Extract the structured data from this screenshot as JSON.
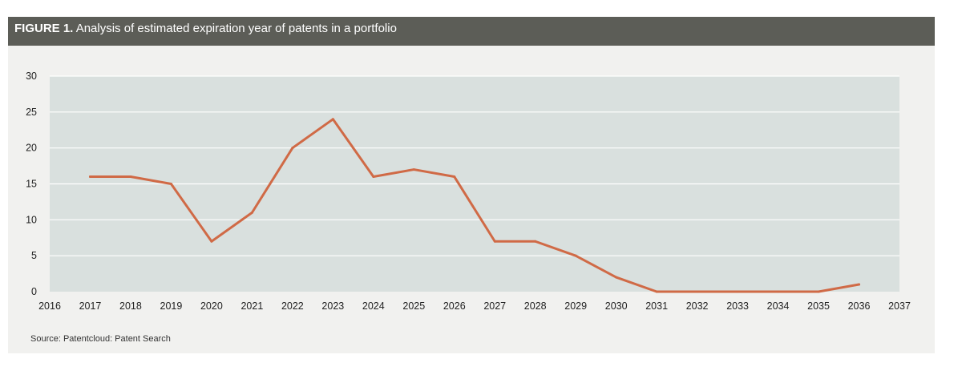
{
  "figure": {
    "label": "FIGURE 1.",
    "title": "Analysis of estimated expiration year of patents in a portfolio",
    "source": "Source: Patentcloud: Patent Search"
  },
  "colors": {
    "title_bar": "#5c5d57",
    "plot_background": "#d9e0de",
    "figure_background": "#f1f1ef",
    "line": "#d06a46",
    "gridline": "#ffffff"
  },
  "chart_data": {
    "type": "line",
    "title": "Analysis of estimated expiration year of patents in a portfolio",
    "xlabel": "",
    "ylabel": "",
    "xlim": [
      2016,
      2037
    ],
    "ylim": [
      0,
      30
    ],
    "x_ticks": [
      "2016",
      "2017",
      "2018",
      "2019",
      "2020",
      "2021",
      "2022",
      "2023",
      "2024",
      "2025",
      "2026",
      "2027",
      "2028",
      "2029",
      "2030",
      "2031",
      "2032",
      "2033",
      "2034",
      "2035",
      "2036",
      "2037"
    ],
    "y_ticks": [
      "0",
      "5",
      "10",
      "15",
      "20",
      "25",
      "30"
    ],
    "grid": "horizontal",
    "legend": "none",
    "series": [
      {
        "x": [
          2017,
          2018,
          2019,
          2020,
          2021,
          2022,
          2023,
          2024,
          2025,
          2026,
          2027,
          2028,
          2029,
          2030,
          2031,
          2032,
          2033,
          2034,
          2035,
          2036
        ],
        "values": [
          16,
          16,
          15,
          7,
          11,
          20,
          24,
          16,
          17,
          16,
          7,
          7,
          5,
          2,
          0,
          0,
          0,
          0,
          0,
          1
        ]
      }
    ]
  }
}
